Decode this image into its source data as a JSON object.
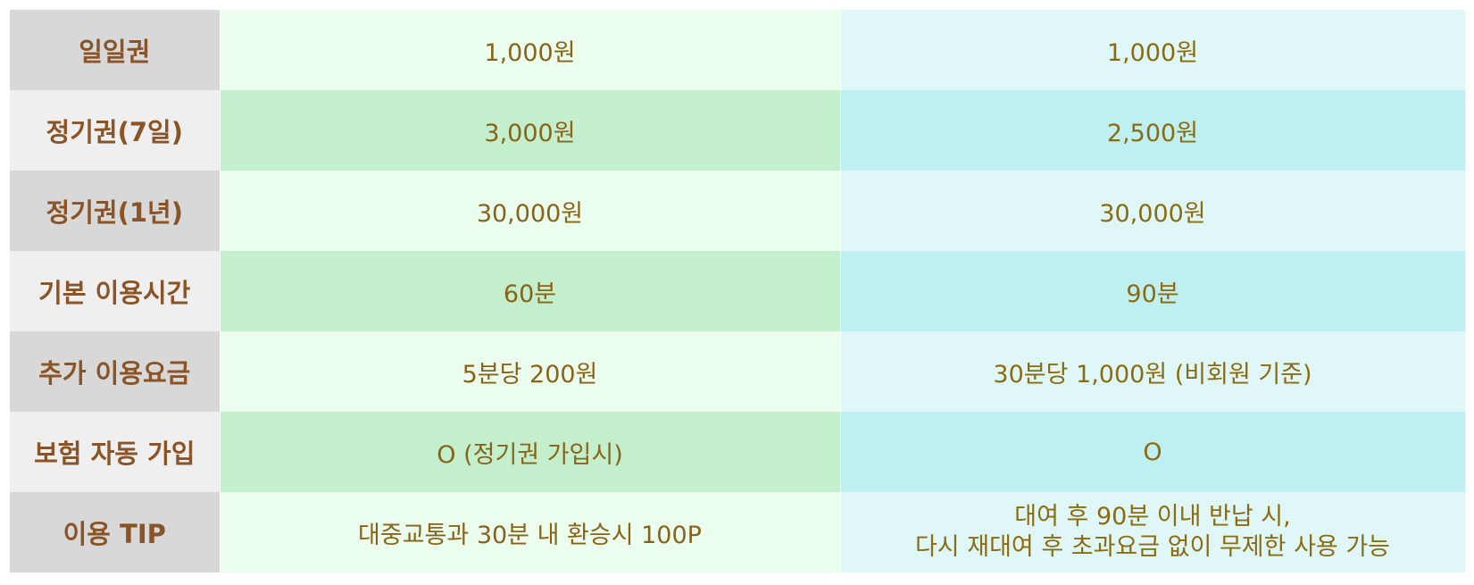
{
  "rows": [
    {
      "label": "일일권",
      "a": "1,000원",
      "b": "1,000원"
    },
    {
      "label": "정기권(7일)",
      "a": "3,000원",
      "b": "2,500원"
    },
    {
      "label": "정기권(1년)",
      "a": "30,000원",
      "b": "30,000원"
    },
    {
      "label": "기본 이용시간",
      "a": "60분",
      "b": "90분"
    },
    {
      "label": "추가 이용요금",
      "a": "5분당 200원",
      "b": "30분당 1,000원 (비회원 기준)"
    },
    {
      "label": "보험 자동 가입",
      "a": "O (정기권 가입시)",
      "b": "O"
    },
    {
      "label": "이용 TIP",
      "a": "대중교통과 30분 내 환승시 100P",
      "b_line1": "대여 후 90분 이내 반납 시,",
      "b_line2": "다시 재대여 후 초과요금 없이 무제한 사용 가능"
    }
  ]
}
